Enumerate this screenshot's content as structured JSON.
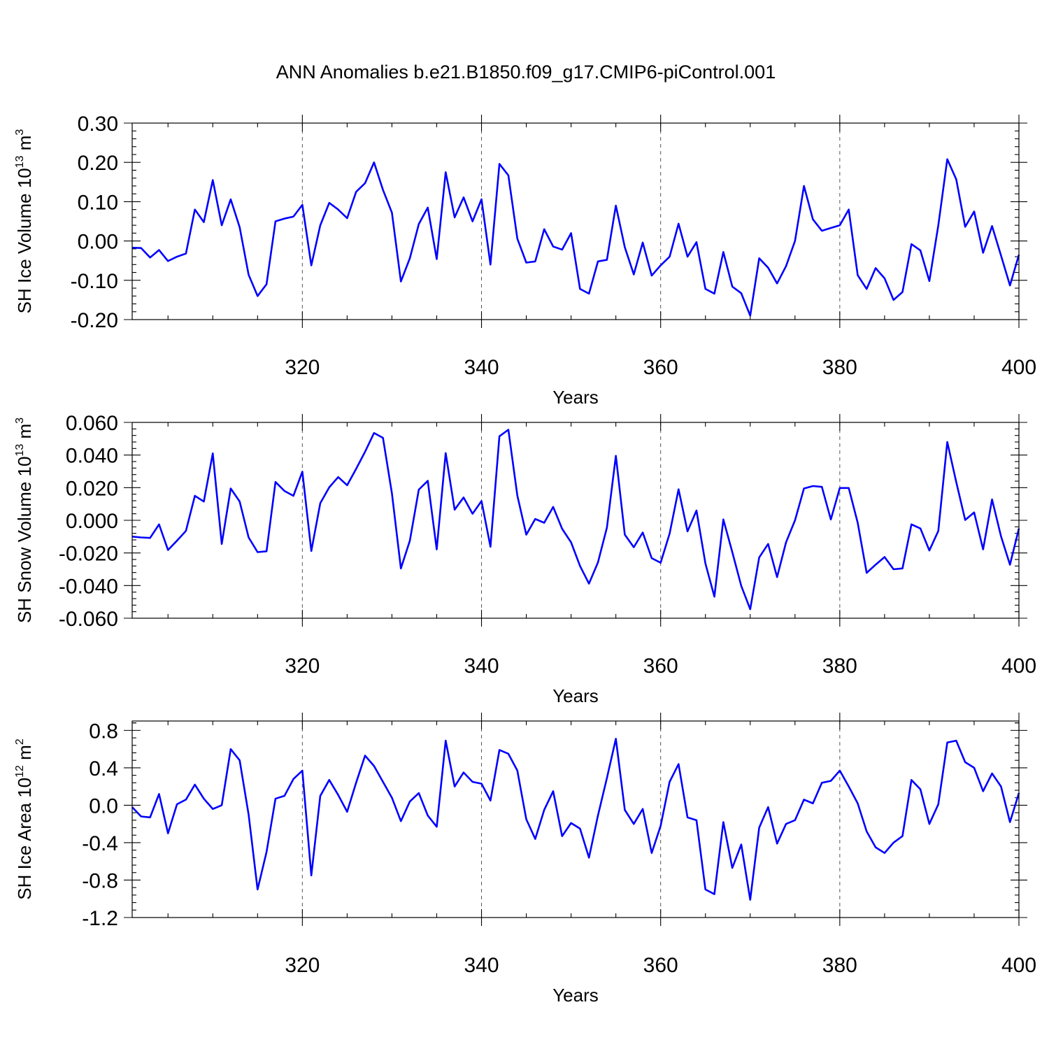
{
  "title": "ANN Anomalies b.e21.B1850.f09_g17.CMIP6-piControl.001",
  "colors": {
    "series": "#0000ff",
    "axes": "#000000"
  },
  "chart_data": [
    {
      "type": "line",
      "ylabel": {
        "text": "SH Ice Volume 10",
        "sup": "13",
        "unit": " m",
        "unit_sup": "3"
      },
      "xlabel": "Years",
      "xlim": [
        301,
        400
      ],
      "ylim": [
        -0.2,
        0.3
      ],
      "xticks": [
        320,
        340,
        360,
        380,
        400
      ],
      "yticks": [
        -0.2,
        -0.1,
        0.0,
        0.1,
        0.2,
        0.3
      ],
      "ytick_labels": [
        "-0.20",
        "-0.10",
        "0.00",
        "0.10",
        "0.20",
        "0.30"
      ],
      "grid": "x-dashed",
      "series": [
        {
          "x_start": 301,
          "values": [
            -0.017,
            -0.018,
            -0.042,
            -0.023,
            -0.051,
            -0.04,
            -0.032,
            0.08,
            0.048,
            0.155,
            0.04,
            0.106,
            0.035,
            -0.086,
            -0.14,
            -0.11,
            0.05,
            0.057,
            0.062,
            0.092,
            -0.062,
            0.04,
            0.097,
            0.08,
            0.058,
            0.125,
            0.147,
            0.2,
            0.13,
            0.072,
            -0.103,
            -0.044,
            0.043,
            0.085,
            -0.046,
            0.175,
            0.06,
            0.111,
            0.05,
            0.106,
            -0.06,
            0.196,
            0.167,
            0.006,
            -0.055,
            -0.052,
            0.03,
            -0.014,
            -0.022,
            0.02,
            -0.122,
            -0.134,
            -0.052,
            -0.048,
            0.09,
            -0.016,
            -0.085,
            -0.004,
            -0.088,
            -0.062,
            -0.04,
            0.044,
            -0.04,
            -0.003,
            -0.122,
            -0.134,
            -0.028,
            -0.116,
            -0.133,
            -0.19,
            -0.044,
            -0.068,
            -0.108,
            -0.064,
            0.0,
            0.14,
            0.055,
            0.026,
            0.033,
            0.04,
            0.08,
            -0.087,
            -0.122,
            -0.069,
            -0.095,
            -0.15,
            -0.13,
            -0.008,
            -0.024,
            -0.102,
            0.04,
            0.208,
            0.157,
            0.036,
            0.075,
            -0.03,
            0.038,
            -0.037,
            -0.113,
            -0.035
          ]
        }
      ]
    },
    {
      "type": "line",
      "ylabel": {
        "text": "SH Snow Volume 10",
        "sup": "13",
        "unit": " m",
        "unit_sup": "3"
      },
      "xlabel": "Years",
      "xlim": [
        301,
        400
      ],
      "ylim": [
        -0.06,
        0.06
      ],
      "xticks": [
        320,
        340,
        360,
        380,
        400
      ],
      "yticks": [
        -0.06,
        -0.04,
        -0.02,
        0.0,
        0.02,
        0.04,
        0.06
      ],
      "ytick_labels": [
        "-0.060",
        "-0.040",
        "-0.020",
        "0.000",
        "0.020",
        "0.040",
        "0.060"
      ],
      "grid": "x-dashed",
      "series": [
        {
          "x_start": 301,
          "values": [
            -0.01,
            -0.0105,
            -0.0108,
            -0.0025,
            -0.0182,
            -0.0125,
            -0.0065,
            0.015,
            0.0115,
            0.041,
            -0.0145,
            0.0195,
            0.0115,
            -0.0105,
            -0.0195,
            -0.019,
            0.0235,
            0.018,
            0.015,
            0.0298,
            -0.0188,
            0.0105,
            0.0202,
            0.0265,
            0.0215,
            0.0315,
            0.042,
            0.0535,
            0.0505,
            0.0165,
            -0.0295,
            -0.0125,
            0.0188,
            0.0242,
            -0.0178,
            0.0412,
            0.0065,
            0.014,
            0.004,
            0.0118,
            -0.0162,
            0.0515,
            0.0555,
            0.0152,
            -0.0088,
            0.0008,
            -0.0015,
            0.0082,
            -0.0052,
            -0.0135,
            -0.028,
            -0.0388,
            -0.0258,
            -0.0045,
            0.0395,
            -0.0088,
            -0.0165,
            -0.0075,
            -0.0232,
            -0.026,
            -0.0082,
            0.019,
            -0.0068,
            0.006,
            -0.0265,
            -0.0468,
            0.0005,
            -0.0195,
            -0.0402,
            -0.0545,
            -0.0228,
            -0.0145,
            -0.0348,
            -0.0135,
            0.0,
            0.0195,
            0.021,
            0.0205,
            0.0005,
            0.0198,
            0.0198,
            -0.0015,
            -0.0322,
            -0.0272,
            -0.0225,
            -0.03,
            -0.0295,
            -0.0025,
            -0.005,
            -0.0185,
            -0.0065,
            0.048,
            0.0235,
            0.0002,
            0.0048,
            -0.0178,
            0.0128,
            -0.0098,
            -0.0272,
            -0.005
          ]
        }
      ]
    },
    {
      "type": "line",
      "ylabel": {
        "text": "SH Ice Area 10",
        "sup": "12",
        "unit": " m",
        "unit_sup": "2"
      },
      "xlabel": "Years",
      "xlim": [
        301,
        400
      ],
      "ylim": [
        -1.2,
        0.9
      ],
      "xticks": [
        320,
        340,
        360,
        380,
        400
      ],
      "yticks": [
        -1.2,
        -0.8,
        -0.4,
        0.0,
        0.4,
        0.8
      ],
      "ytick_labels": [
        "-1.2",
        "-0.8",
        "-0.4",
        "0.0",
        "0.4",
        "0.8"
      ],
      "grid": "x-dashed",
      "series": [
        {
          "x_start": 301,
          "values": [
            -0.02,
            -0.12,
            -0.13,
            0.12,
            -0.3,
            0.01,
            0.06,
            0.22,
            0.07,
            -0.04,
            0.0,
            0.6,
            0.48,
            -0.1,
            -0.9,
            -0.5,
            0.07,
            0.1,
            0.28,
            0.37,
            -0.75,
            0.1,
            0.27,
            0.11,
            -0.07,
            0.24,
            0.53,
            0.42,
            0.25,
            0.08,
            -0.17,
            0.04,
            0.13,
            -0.11,
            -0.23,
            0.69,
            0.2,
            0.35,
            0.25,
            0.23,
            0.05,
            0.59,
            0.55,
            0.37,
            -0.15,
            -0.36,
            -0.05,
            0.15,
            -0.33,
            -0.19,
            -0.25,
            -0.56,
            -0.11,
            0.29,
            0.71,
            -0.05,
            -0.2,
            -0.04,
            -0.51,
            -0.22,
            0.25,
            0.44,
            -0.13,
            -0.16,
            -0.9,
            -0.95,
            -0.18,
            -0.67,
            -0.42,
            -1.01,
            -0.24,
            -0.02,
            -0.41,
            -0.2,
            -0.16,
            0.06,
            0.02,
            0.24,
            0.26,
            0.37,
            0.2,
            0.02,
            -0.28,
            -0.45,
            -0.51,
            -0.4,
            -0.33,
            0.27,
            0.17,
            -0.2,
            0.01,
            0.67,
            0.69,
            0.46,
            0.4,
            0.15,
            0.34,
            0.2,
            -0.18,
            0.13
          ]
        }
      ]
    }
  ]
}
